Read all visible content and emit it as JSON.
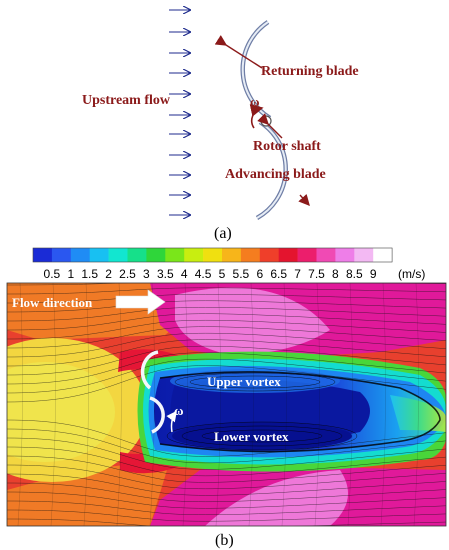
{
  "panel_a": {
    "labels": {
      "returning_blade": "Returning blade",
      "upstream_flow": "Upstream flow",
      "omega": "ω",
      "rotor_shaft": "Rotor shaft",
      "advancing_blade": "Advancing blade"
    },
    "caption": "(a)"
  },
  "panel_b": {
    "colorbar": {
      "ticks": [
        "0.5",
        "1",
        "1.5",
        "2",
        "2.5",
        "3",
        "3.5",
        "4",
        "4.5",
        "5",
        "5.5",
        "6",
        "6.5",
        "7",
        "7.5",
        "8",
        "8.5",
        "9"
      ],
      "unit": "(m/s)",
      "colors": [
        "#1a2bd6",
        "#2a57f0",
        "#1f8cf5",
        "#18c0f2",
        "#12e6d0",
        "#16e08a",
        "#2fd63a",
        "#7ae61a",
        "#c8ee10",
        "#f0e010",
        "#f7b51a",
        "#f57d1f",
        "#ef3f2a",
        "#e4142e",
        "#ec1e6c",
        "#f04ab4",
        "#ee7ee8",
        "#f3b9f3",
        "#ffffff"
      ]
    },
    "labels": {
      "flow_direction": "Flow direction",
      "upper_vortex": "Upper vortex",
      "lower_vortex": "Lower vortex",
      "omega": "ω"
    },
    "caption": "(b)"
  }
}
